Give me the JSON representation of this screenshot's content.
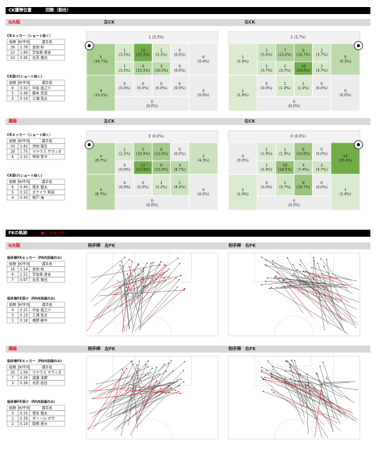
{
  "ck": {
    "title": "CK獲得位置",
    "subtitle": "回数（割合）",
    "headers": [
      "総数",
      "90平均",
      "選手名"
    ],
    "teams": [
      {
        "name": "G大阪",
        "left_label": "左CK",
        "right_label": "右CK",
        "kicker_title": "CKキッカー（ショート除く）",
        "kickers": [
          [
            "39",
            "2.78",
            "倉田 秋"
          ],
          [
            "10",
            "1.89",
            "宇佐美 貴史"
          ],
          [
            "10",
            "0.95",
            "矢島 慎也"
          ]
        ],
        "receiver_title": "CK受け(ショート除く)",
        "receivers": [
          [
            "6",
            "0.32",
            "中谷 進之介"
          ],
          [
            "5",
            "0.48",
            "藤本 武流"
          ],
          [
            "3",
            "0.19",
            "三浦 弦太"
          ]
        ],
        "left_zones": [
          [
            1,
            "(3.3%)"
          ],
          [
            5,
            "(16.7%)"
          ],
          [
            1,
            "(3.3%)"
          ],
          [
            10,
            "(33.3%)"
          ],
          [
            1,
            "(3.3%)"
          ],
          [
            0,
            "(0.0%)"
          ],
          [
            1,
            "(3.3%)"
          ],
          [
            4,
            "(13.3%)"
          ],
          [
            3,
            "(10.0%)"
          ],
          [
            0,
            "(0.0%)"
          ],
          [
            0,
            "(0.0%)"
          ],
          [
            4,
            "(13.3%)"
          ],
          [
            0,
            "(0.0%)"
          ],
          [
            0,
            "(0.0%)"
          ],
          [
            0,
            "(0.0%)"
          ],
          [
            0,
            "(0.0%)"
          ],
          [
            0,
            "(0.0%)"
          ],
          [
            0,
            "(0.0%)"
          ]
        ],
        "right_zones": [
          [
            2,
            "(3.7%)"
          ],
          [
            1,
            "(1.9%)"
          ],
          [
            3,
            "(5.6%)"
          ],
          [
            7,
            "(13.0%)"
          ],
          [
            9,
            "(16.7%)"
          ],
          [
            2,
            "(3.7%)"
          ],
          [
            2,
            "(3.7%)"
          ],
          [
            2,
            "(3.7%)"
          ],
          [
            16,
            "(29.6%)"
          ],
          [
            2,
            "(3.7%)"
          ],
          [
            5,
            "(9.3%)"
          ],
          [
            1,
            "(1.9%)"
          ],
          [
            0,
            "(0.0%)"
          ],
          [
            1,
            "(1.9%)"
          ],
          [
            1,
            "(1.9%)"
          ],
          [
            0,
            "(0.0%)"
          ],
          [
            0,
            "(0.0%)"
          ],
          [
            0,
            "(0.0%)"
          ]
        ]
      },
      {
        "name": "湘南",
        "left_label": "左CK",
        "right_label": "右CK",
        "kicker_title": "CKキッカー（ショート除く）",
        "kickers": [
          [
            "33",
            "1.82",
            "茨田 陽生"
          ],
          [
            "28",
            "1.75",
            "マテウス サヴィオ"
          ],
          [
            "6",
            "2.32",
            "甲田 隼平"
          ]
        ],
        "receiver_title": "CK受け(ショート除く)",
        "receivers": [
          [
            "8",
            "0.40",
            "根本 健太"
          ],
          [
            "5",
            "0.53",
            "オナイウ 阿道"
          ],
          [
            "4",
            "0.43",
            "柴戸 海"
          ]
        ],
        "left_zones": [
          [
            0,
            "(0.0%)"
          ],
          [
            4,
            "(8.7%)"
          ],
          [
            1,
            "(2.2%)"
          ],
          [
            5,
            "(10.9%)"
          ],
          [
            6,
            "(13.0%)"
          ],
          [
            0,
            "(0.0%)"
          ],
          [
            0,
            "(0.0%)"
          ],
          [
            11,
            "(23.9%)"
          ],
          [
            6,
            "(13.0%)"
          ],
          [
            4,
            "(8.7%)"
          ],
          [
            2,
            "(4.3%)"
          ],
          [
            4,
            "(8.7%)"
          ],
          [
            0,
            "(0.0%)"
          ],
          [
            0,
            "(0.0%)"
          ],
          [
            1,
            "(2.2%)"
          ],
          [
            2,
            "(4.3%)"
          ],
          [
            0,
            "(0.0%)"
          ],
          [
            0,
            "(0.0%)"
          ]
        ],
        "right_zones": [
          [
            0,
            "(0.0%)"
          ],
          [
            0,
            "(0.0%)"
          ],
          [
            1,
            "(1.9%)"
          ],
          [
            1,
            "(1.9%)"
          ],
          [
            8,
            "(14.8%)"
          ],
          [
            0,
            "(0.0%)"
          ],
          [
            1,
            "(1.9%)"
          ],
          [
            10,
            "(18.5%)"
          ],
          [
            4,
            "(7.4%)"
          ],
          [
            2,
            "(3.7%)"
          ],
          [
            14,
            "(25.9%)"
          ],
          [
            1,
            "(1.9%)"
          ],
          [
            0,
            "(0.0%)"
          ],
          [
            2,
            "(3.7%)"
          ],
          [
            9,
            "(16.7%)"
          ],
          [
            0,
            "(0.0%)"
          ],
          [
            1,
            "(1.9%)"
          ],
          [
            0,
            "(0.0%)"
          ]
        ]
      }
    ]
  },
  "fk": {
    "title": "FKの軌跡",
    "legend": "●：シュート",
    "headers": [
      "総数",
      "90平均",
      "選手名"
    ],
    "teams": [
      {
        "name": "G大阪",
        "left_label": "相手陣　左FK",
        "right_label": "相手陣　右FK",
        "kicker_title": "相手陣FKキッカー（PA内到達のみ）",
        "kickers": [
          [
            "16",
            "1.14",
            "倉田 秋"
          ],
          [
            "8",
            "1.51",
            "宇佐美 貴史"
          ],
          [
            "7",
            "0.67",
            "矢島 慎也"
          ]
        ],
        "receiver_title": "相手陣FK受け（PA内到達のみ）",
        "receivers": [
          [
            "4",
            "0.21",
            "中谷 進之介"
          ],
          [
            "3",
            "0.19",
            "三浦 弦太"
          ],
          [
            "1",
            "0.18",
            "奥野 耕平"
          ]
        ]
      },
      {
        "name": "湘南",
        "left_label": "相手陣　左FK",
        "right_label": "相手陣　右FK",
        "kicker_title": "相手陣FKキッカー（PA内到達のみ）",
        "kickers": [
          [
            "25",
            "1.56",
            "マテウス サヴィオ"
          ],
          [
            "7",
            "0.39",
            "渡邉 凌磨"
          ],
          [
            "3",
            "0.38",
            "氏原 拓也"
          ]
        ],
        "receiver_title": "相手陣FK受け（PA内到達のみ）",
        "receivers": [
          [
            "3",
            "0.15",
            "根本 健太"
          ],
          [
            "2",
            "0.39",
            "ダニーロ ボザ"
          ],
          [
            "2",
            "0.19",
            "関根 貴大"
          ]
        ]
      }
    ]
  }
}
